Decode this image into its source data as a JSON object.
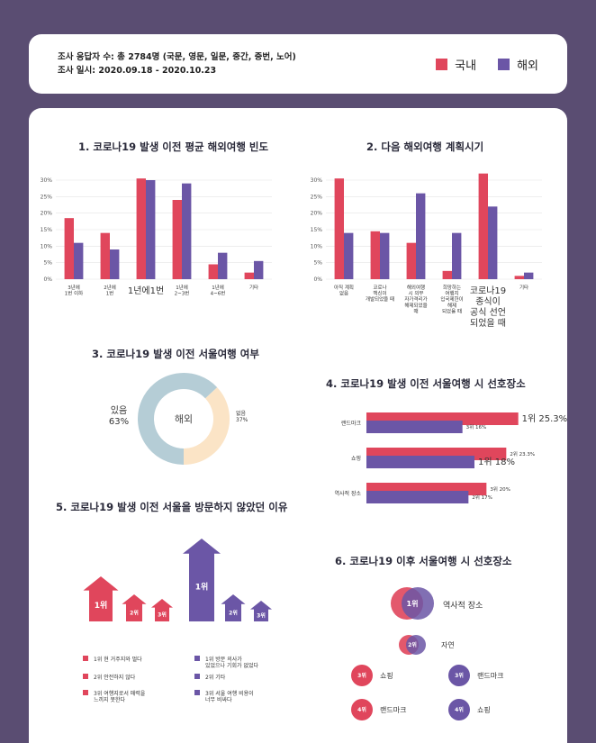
{
  "header": {
    "respondents": "조사 응답자 수: 총 2784명 (국문, 영문, 일문, 중간, 중번, 노어)",
    "period": "조사 일시: 2020.09.18 - 2020.10.23"
  },
  "legend": {
    "domestic": "국내",
    "overseas": "해외",
    "domestic_color": "#e0465c",
    "overseas_color": "#6b56a6"
  },
  "titles": {
    "c1": "1. 코로나19 발생 이전 평균 해외여행 빈도",
    "c2": "2. 다음 해외여행 계획시기",
    "c3": "3. 코로나19 발생 이전 서울여행 여부",
    "c4": "4. 코로나19 발생 이전 서울여행 시 선호장소",
    "c5": "5. 코로나19 발생 이전 서울을 방문하지 않았던 이유",
    "c6": "6. 코로나19 이후 서울여행 시 선호장소"
  },
  "chart_data": [
    {
      "type": "bar",
      "title": "1. 코로나19 발생 이전 평균 해외여행 빈도",
      "ylim": [
        0,
        30
      ],
      "yticks": [
        "0%",
        "5%",
        "10%",
        "15%",
        "20%",
        "25%",
        "30%"
      ],
      "categories": [
        "3년에\n1번 이하",
        "2년에\n1번",
        "1년에1번",
        "1년에\n2~3번",
        "1년에\n4~6번",
        "기타"
      ],
      "series": [
        {
          "name": "국내",
          "values": [
            18.5,
            14,
            30.5,
            24,
            4.5,
            2
          ]
        },
        {
          "name": "해외",
          "values": [
            11,
            9,
            30,
            29,
            8,
            5.5
          ]
        }
      ]
    },
    {
      "type": "bar",
      "title": "2. 다음 해외여행 계획시기",
      "ylim": [
        0,
        30
      ],
      "yticks": [
        "0%",
        "5%",
        "10%",
        "15%",
        "20%",
        "25%",
        "30%"
      ],
      "categories": [
        "아직 계획\n없음",
        "코로나\n백신이\n개발되었을 때",
        "해외여행\n시 의무\n자가격리가\n해제되었을\n때",
        "희망하는\n여행지\n입국제한이\n해제\n되었을 때",
        "코로나19\n종식이\n공식 선언\n되었을 때",
        "기타"
      ],
      "series": [
        {
          "name": "국내",
          "values": [
            30.5,
            14.5,
            11,
            2.5,
            32,
            1
          ]
        },
        {
          "name": "해외",
          "values": [
            14,
            14,
            26,
            14,
            22,
            2
          ]
        }
      ]
    },
    {
      "type": "pie",
      "title": "3. 코로나19 발생 이전 서울여행 여부",
      "center_label": "해외",
      "slices": [
        {
          "label": "있음",
          "value": 63,
          "text": "63%"
        },
        {
          "label": "없음",
          "value": 37,
          "text": "37%"
        }
      ]
    },
    {
      "type": "bar",
      "orientation": "horizontal",
      "title": "4. 코로나19 발생 이전 서울여행 시 선호장소",
      "categories": [
        "랜드마크",
        "쇼핑",
        "역사적 장소"
      ],
      "series": [
        {
          "name": "국내",
          "values": [
            25.3,
            23.3,
            20
          ],
          "labels": [
            "1위 25.3%",
            "2위 23.3%",
            "3위 20%"
          ]
        },
        {
          "name": "해외",
          "values": [
            16,
            18,
            17
          ],
          "labels": [
            "3위 16%",
            "1위 18%",
            "2위 17%"
          ]
        }
      ]
    }
  ],
  "reasons": {
    "domestic_ranks": [
      "1위",
      "2위",
      "3위"
    ],
    "overseas_ranks": [
      "1위",
      "2위",
      "3위"
    ],
    "domestic_items": [
      "1위 현 거주지와 멀다",
      "2위 안전하지 않다",
      "3위 여행지로서 매력을\n느끼지 못한다"
    ],
    "overseas_items": [
      "1위 방문 의사가\n있었으나 기회가 없었다",
      "2위 기타",
      "3위 서울 여행 비용이\n너무 비싸다"
    ]
  },
  "future_places": {
    "top1_rank": "1위",
    "top1_label": "역사적 장소",
    "top2_rank": "2위",
    "top2_label": "자연",
    "domestic": [
      {
        "rank": "3위",
        "label": "쇼핑"
      },
      {
        "rank": "4위",
        "label": "랜드마크"
      }
    ],
    "overseas": [
      {
        "rank": "3위",
        "label": "랜드마크"
      },
      {
        "rank": "4위",
        "label": "쇼핑"
      }
    ]
  }
}
